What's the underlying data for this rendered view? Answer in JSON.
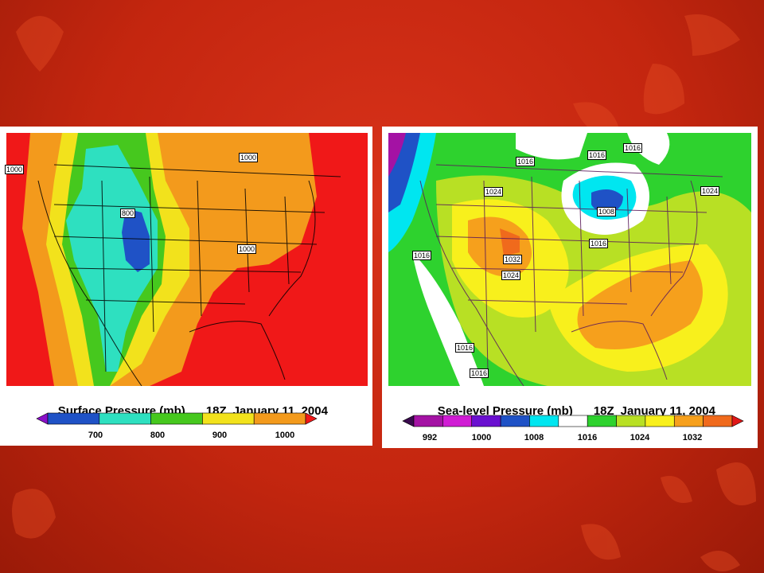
{
  "maps": [
    {
      "title": "Surface Pressure (mb)",
      "time": "18Z",
      "date": "January 11, 2004",
      "colorbar_labels": [
        "700",
        "800",
        "900",
        "1000"
      ],
      "colorbar_colors": [
        "#8a10c8",
        "#1f52c6",
        "#2ee0c0",
        "#46c81e",
        "#f2e21c",
        "#f39a1c",
        "#f01818"
      ],
      "contour_labels": [
        "1000",
        "800",
        "1000",
        "1000"
      ]
    },
    {
      "title": "Sea-level Pressure (mb)",
      "time": "18Z",
      "date": "January 11, 2004",
      "colorbar_labels": [
        "992",
        "1000",
        "1008",
        "1016",
        "1024",
        "1032"
      ],
      "colorbar_colors": [
        "#3a0a4e",
        "#a412a4",
        "#d01cd4",
        "#6a10d0",
        "#1f52c6",
        "#00e6f0",
        "#ffffff",
        "#2ed22e",
        "#b8e024",
        "#f8f01c",
        "#f6a01c",
        "#f06a1c",
        "#e01818"
      ],
      "contour_labels": [
        "1016",
        "1016",
        "1016",
        "1024",
        "1024",
        "1016",
        "1008",
        "1016",
        "1032",
        "1024",
        "1016",
        "1016"
      ]
    }
  ]
}
